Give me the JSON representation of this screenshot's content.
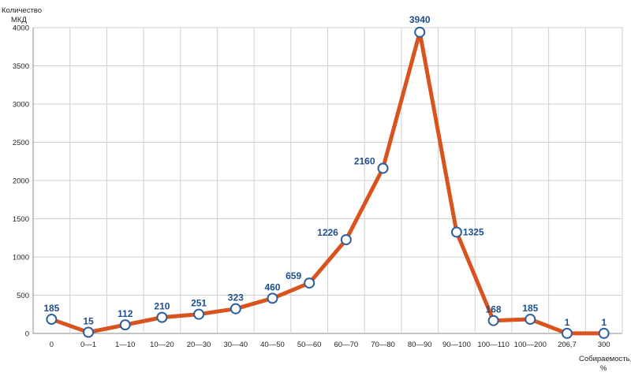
{
  "chart_data": {
    "type": "line",
    "ylabel_line1": "Количество",
    "ylabel_line2": "МКД",
    "xlabel_line1": "Собираемость,",
    "xlabel_line2": "%",
    "categories": [
      "0",
      "0—1",
      "1—10",
      "10—20",
      "20—30",
      "30—40",
      "40—50",
      "50—60",
      "60—70",
      "70—80",
      "80—90",
      "90—100",
      "100—110",
      "100—200",
      "206,7",
      "300"
    ],
    "values": [
      185,
      15,
      112,
      210,
      251,
      323,
      460,
      659,
      1226,
      2160,
      3940,
      1325,
      168,
      185,
      1,
      1
    ],
    "data_labels": [
      "185",
      "15",
      "112",
      "210",
      "251",
      "323",
      "460",
      "659",
      "1226",
      "2160",
      "3940",
      "1325",
      "168",
      "185",
      "1",
      "1"
    ],
    "ylim": [
      0,
      4000
    ],
    "yticks": [
      "0",
      "500",
      "1000",
      "1500",
      "2000",
      "2500",
      "3000",
      "3500",
      "4000"
    ],
    "grid": true,
    "line_color": "#d9531e",
    "marker_fill": "#ffffff",
    "marker_stroke": "#2f5f9e",
    "label_color": "#1f4e8c"
  }
}
